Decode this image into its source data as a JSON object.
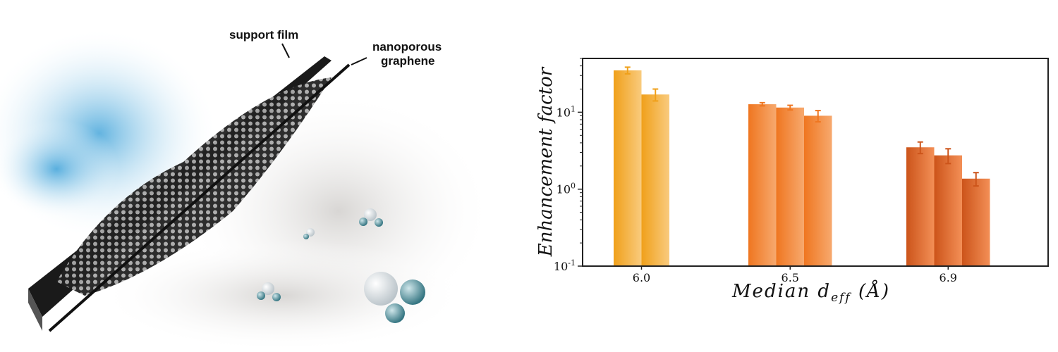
{
  "illustration": {
    "labels": {
      "support_film": "support film",
      "nanoporous_graphene_line1": "nanoporous",
      "nanoporous_graphene_line2": "graphene"
    }
  },
  "chart_data": {
    "type": "bar",
    "categories": [
      "6.0",
      "6.5",
      "6.9"
    ],
    "xlabel": "Median d_eff (Å)",
    "xlabel_main": "Median d",
    "xlabel_sub": "eff",
    "xlabel_unit": "(Å)",
    "ylabel": "Enhancement factor",
    "yscale": "log",
    "ylim": [
      0.1,
      50
    ],
    "yticks": [
      {
        "value": 0.1,
        "base": "10",
        "exp": "-1"
      },
      {
        "value": 1,
        "base": "10",
        "exp": "0"
      },
      {
        "value": 10,
        "base": "10",
        "exp": "1"
      }
    ],
    "grid": false,
    "groups": [
      {
        "category": "6.0",
        "color_dark": "#f0a01a",
        "color_light": "#f9cb7e",
        "values": [
          35,
          17
        ],
        "errors": [
          3.5,
          3
        ]
      },
      {
        "category": "6.5",
        "color_dark": "#ef7620",
        "color_light": "#f7a96e",
        "values": [
          12.7,
          11.5,
          9.0
        ],
        "errors": [
          0.6,
          0.8,
          1.5
        ]
      },
      {
        "category": "6.9",
        "color_dark": "#cc541a",
        "color_light": "#f38f56",
        "values": [
          3.5,
          2.75,
          1.37
        ],
        "errors": [
          0.6,
          0.6,
          0.27
        ]
      }
    ]
  }
}
